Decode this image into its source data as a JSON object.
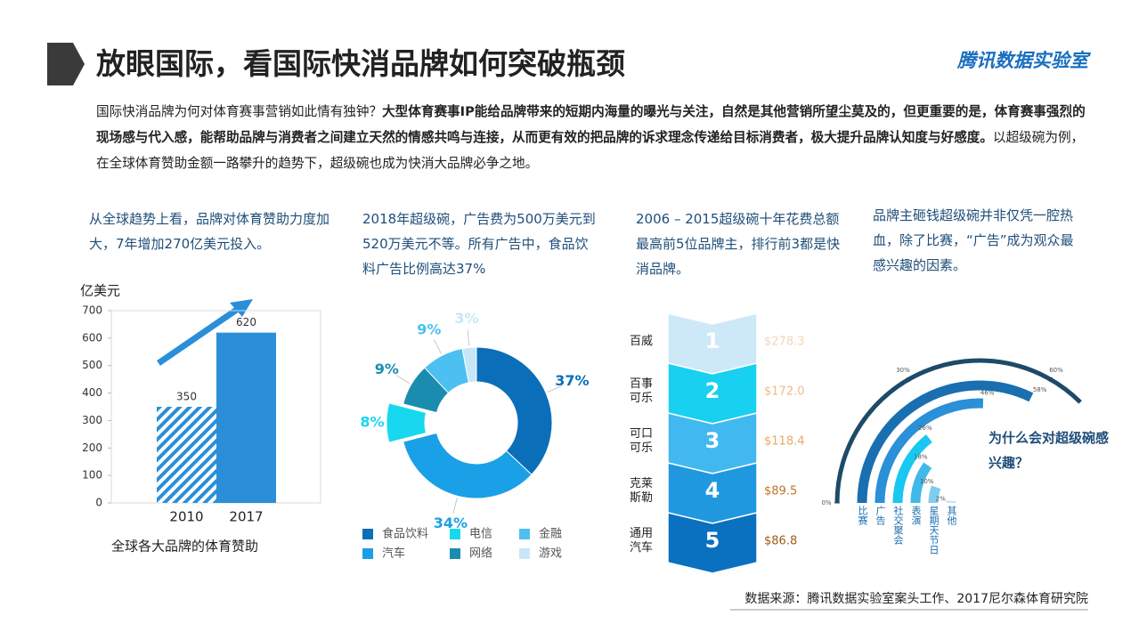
{
  "header": {
    "title": "放眼国际，看国际快消品牌如何突破瓶颈",
    "brand": "腾讯数据实验室"
  },
  "intro": [
    {
      "text": "国际快消品牌为何对体育赛事营销如此情有独钟？",
      "bold": false
    },
    {
      "text": "大型体育赛事IP能给品牌带来的短期内海量的曝光与关注，自然是其他营销所望尘莫及的，但更重要的是，体育赛事强烈的现场感与代入感，能帮助品牌与消费者之间建立天然的情感共鸣与连接，从而更有效的把品牌的诉求理念传递给目标消费者，极大提升品牌认知度与好感度。",
      "bold": true
    },
    {
      "text": "以超级碗为例，在全球体育赞助金额一路攀升的趋势下，超级碗也成为快消大品牌必争之地。",
      "bold": false
    }
  ],
  "captions": [
    "从全球趋势上看，品牌对体育赞助力度加大，7年增加270亿美元投入。",
    "2018年超级碗，广告费为500万美元到520万美元不等。所有广告中，食品饮料广告比例高达37%",
    "2006 – 2015超级碗十年花费总额最高前5位品牌主，排行前3都是快消品牌。",
    "品牌主砸钱超级碗并非仅凭一腔热血，除了比赛，“广告”成为观众最感兴趣的因素。"
  ],
  "chart_data": [
    {
      "type": "bar",
      "y_label": "亿美元",
      "categories": [
        "2010",
        "2017"
      ],
      "values": [
        350,
        620
      ],
      "colors": [
        "#2a8fd8",
        "#2a8fd8"
      ],
      "patterns": [
        "hatch",
        "solid"
      ],
      "ylim": [
        0,
        700
      ],
      "yticks": [
        0,
        100,
        200,
        300,
        400,
        500,
        600,
        700
      ],
      "caption": "全球各大品牌的体育赞助"
    },
    {
      "type": "donut",
      "categories": [
        "食品饮料",
        "汽车",
        "电信",
        "网络",
        "金融",
        "游戏"
      ],
      "values": [
        37,
        34,
        8,
        9,
        9,
        3
      ],
      "value_labels": [
        "37%",
        "34%",
        "8%",
        "9%",
        "9%",
        "3%"
      ],
      "colors": [
        "#0a6fb8",
        "#1aa0e6",
        "#18d8f0",
        "#1a8cb0",
        "#4cc0f0",
        "#c8e6f8"
      ],
      "explode": [
        false,
        false,
        true,
        false,
        false,
        false
      ]
    },
    {
      "type": "ranking",
      "ranks": [
        1,
        2,
        3,
        4,
        5
      ],
      "categories": [
        "百威",
        "百事可乐",
        "可口可乐",
        "克莱斯勒",
        "通用汽车"
      ],
      "values": [
        278.3,
        172.0,
        118.4,
        89.5,
        86.8
      ],
      "value_labels": [
        "$278.3",
        "$172.0",
        "$118.4",
        "$89.5",
        "$86.8"
      ],
      "colors": [
        "#cde9f8",
        "#18d0f0",
        "#42b8f0",
        "#2098e0",
        "#0a70c0"
      ],
      "label_colors": [
        "#f2d6b8",
        "#f0bb84",
        "#e9a862",
        "#c27422",
        "#a05c14"
      ]
    },
    {
      "type": "radial_bar",
      "categories": [
        "比赛",
        "广告",
        "社交聚会",
        "表演",
        "星期天节日",
        "其他"
      ],
      "values": [
        58,
        46,
        26,
        18,
        10,
        2
      ],
      "value_labels": [
        "58%",
        "46%",
        "26%",
        "18%",
        "10%",
        "2%"
      ],
      "colors": [
        "#1a6fb0",
        "#2a90d8",
        "#18c8f0",
        "#40b8e8",
        "#80ccf0",
        "#c4e4f8"
      ],
      "lim": [
        0,
        60
      ],
      "ticks": [
        {
          "value": 0,
          "label": "0%"
        },
        {
          "value": 30,
          "label": "30%"
        },
        {
          "value": 60,
          "label": "60%"
        }
      ],
      "annotation": "为什么会对超级碗感兴趣？"
    }
  ],
  "source": "数据来源：腾讯数据实验室案头工作、2017尼尔森体育研究院"
}
